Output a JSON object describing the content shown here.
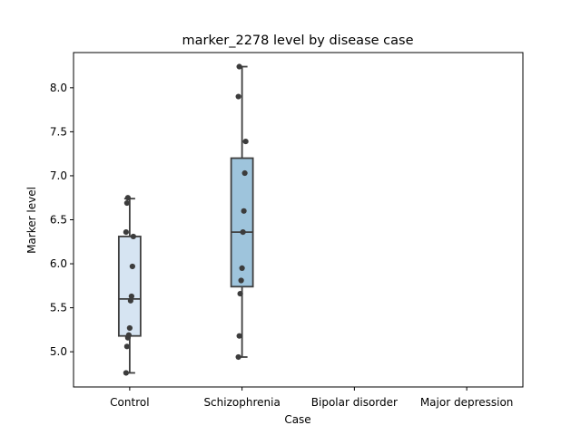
{
  "chart_data": {
    "type": "box",
    "title": "marker_2278 level by disease case",
    "xlabel": "Case",
    "ylabel": "Marker level",
    "categories": [
      "Control",
      "Schizophrenia",
      "Bipolar disorder",
      "Major depression"
    ],
    "ylim": [
      4.6,
      8.4
    ],
    "yticks": [
      5.0,
      5.5,
      6.0,
      6.5,
      7.0,
      7.5,
      8.0
    ],
    "ytick_labels": [
      "5.0",
      "5.5",
      "6.0",
      "6.5",
      "7.0",
      "7.5",
      "8.0"
    ],
    "grid": false,
    "boxes": [
      {
        "category": "Control",
        "whisker_low": 4.76,
        "q1": 5.18,
        "median": 5.6,
        "q3": 6.31,
        "whisker_high": 6.74,
        "color": "#d6e4f2"
      },
      {
        "category": "Schizophrenia",
        "whisker_low": 4.94,
        "q1": 5.74,
        "median": 6.36,
        "q3": 7.2,
        "whisker_high": 8.24,
        "color": "#9ec4dc"
      }
    ],
    "points": [
      {
        "category": "Control",
        "values": [
          4.76,
          5.06,
          5.16,
          5.19,
          5.27,
          5.58,
          5.63,
          5.97,
          6.31,
          6.36,
          6.69,
          6.75
        ]
      },
      {
        "category": "Schizophrenia",
        "values": [
          4.94,
          5.18,
          5.66,
          5.81,
          5.95,
          6.36,
          6.6,
          7.03,
          7.39,
          7.9,
          8.24
        ]
      }
    ],
    "colors": {
      "edge": "#3f3f3f",
      "points": "#3c3c3c"
    }
  }
}
